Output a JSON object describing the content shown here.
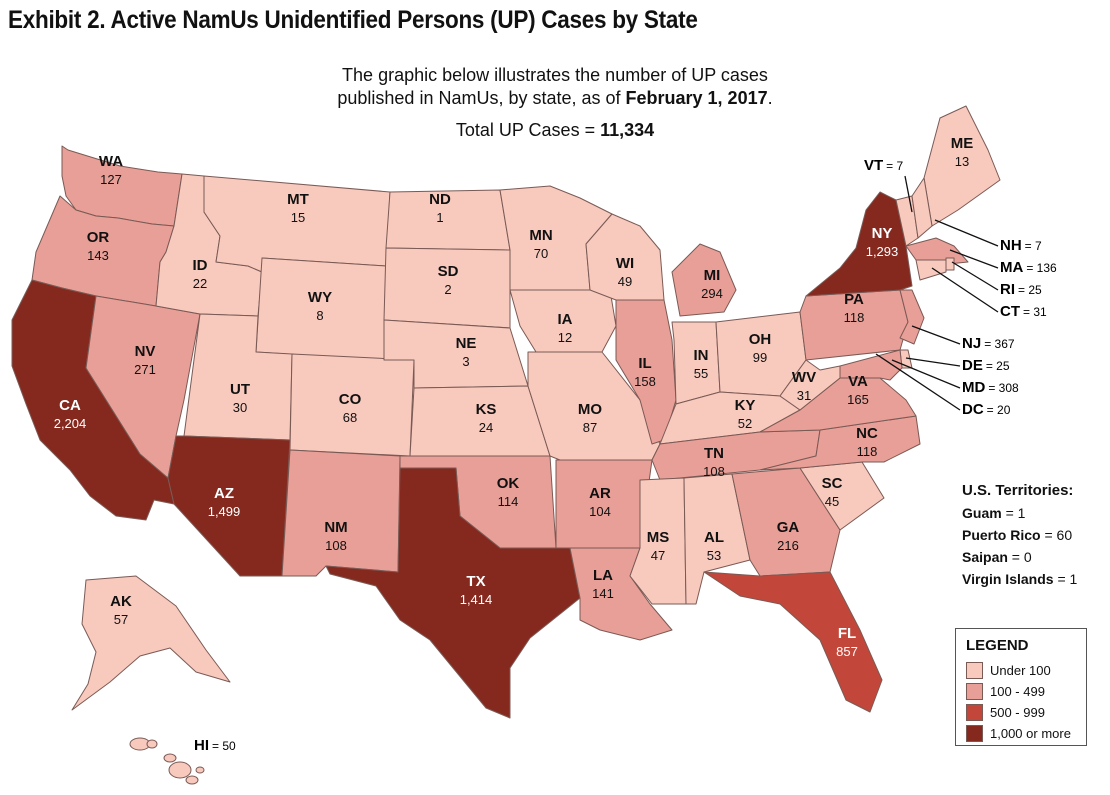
{
  "title": "Exhibit 2. Active NamUs Unidentified Persons (UP) Cases by State",
  "intro_line1": "The graphic below illustrates the number of UP cases",
  "intro_line2_pre": "published in NamUs, by state, as of ",
  "intro_line2_date": "February 1, 2017",
  "intro_line2_post": ".",
  "total_label": "Total UP Cases = ",
  "total_value": "11,334",
  "colors": {
    "under100": "#f8c9bd",
    "r100_499": "#e89f97",
    "r500_999": "#c2473a",
    "r1000": "#85291f",
    "border": "#7a5a55"
  },
  "states": [
    {
      "abbr": "WA",
      "value": "127",
      "tier": "r100_499"
    },
    {
      "abbr": "OR",
      "value": "143",
      "tier": "r100_499"
    },
    {
      "abbr": "CA",
      "value": "2,204",
      "tier": "r1000"
    },
    {
      "abbr": "NV",
      "value": "271",
      "tier": "r100_499"
    },
    {
      "abbr": "ID",
      "value": "22",
      "tier": "under100"
    },
    {
      "abbr": "MT",
      "value": "15",
      "tier": "under100"
    },
    {
      "abbr": "WY",
      "value": "8",
      "tier": "under100"
    },
    {
      "abbr": "UT",
      "value": "30",
      "tier": "under100"
    },
    {
      "abbr": "AZ",
      "value": "1,499",
      "tier": "r1000"
    },
    {
      "abbr": "CO",
      "value": "68",
      "tier": "under100"
    },
    {
      "abbr": "NM",
      "value": "108",
      "tier": "r100_499"
    },
    {
      "abbr": "ND",
      "value": "1",
      "tier": "under100"
    },
    {
      "abbr": "SD",
      "value": "2",
      "tier": "under100"
    },
    {
      "abbr": "NE",
      "value": "3",
      "tier": "under100"
    },
    {
      "abbr": "KS",
      "value": "24",
      "tier": "under100"
    },
    {
      "abbr": "OK",
      "value": "114",
      "tier": "r100_499"
    },
    {
      "abbr": "TX",
      "value": "1,414",
      "tier": "r1000"
    },
    {
      "abbr": "MN",
      "value": "70",
      "tier": "under100"
    },
    {
      "abbr": "IA",
      "value": "12",
      "tier": "under100"
    },
    {
      "abbr": "MO",
      "value": "87",
      "tier": "under100"
    },
    {
      "abbr": "AR",
      "value": "104",
      "tier": "r100_499"
    },
    {
      "abbr": "LA",
      "value": "141",
      "tier": "r100_499"
    },
    {
      "abbr": "WI",
      "value": "49",
      "tier": "under100"
    },
    {
      "abbr": "IL",
      "value": "158",
      "tier": "r100_499"
    },
    {
      "abbr": "MI",
      "value": "294",
      "tier": "r100_499"
    },
    {
      "abbr": "IN",
      "value": "55",
      "tier": "under100"
    },
    {
      "abbr": "OH",
      "value": "99",
      "tier": "under100"
    },
    {
      "abbr": "KY",
      "value": "52",
      "tier": "under100"
    },
    {
      "abbr": "TN",
      "value": "108",
      "tier": "r100_499"
    },
    {
      "abbr": "MS",
      "value": "47",
      "tier": "under100"
    },
    {
      "abbr": "AL",
      "value": "53",
      "tier": "under100"
    },
    {
      "abbr": "GA",
      "value": "216",
      "tier": "r100_499"
    },
    {
      "abbr": "FL",
      "value": "857",
      "tier": "r500_999"
    },
    {
      "abbr": "SC",
      "value": "45",
      "tier": "under100"
    },
    {
      "abbr": "NC",
      "value": "118",
      "tier": "r100_499"
    },
    {
      "abbr": "VA",
      "value": "165",
      "tier": "r100_499"
    },
    {
      "abbr": "WV",
      "value": "31",
      "tier": "under100"
    },
    {
      "abbr": "PA",
      "value": "118",
      "tier": "r100_499"
    },
    {
      "abbr": "NY",
      "value": "1,293",
      "tier": "r1000"
    },
    {
      "abbr": "ME",
      "value": "13",
      "tier": "under100"
    },
    {
      "abbr": "AK",
      "value": "57",
      "tier": "under100"
    }
  ],
  "callouts": [
    {
      "abbr": "VT",
      "value": "= 7"
    },
    {
      "abbr": "NH",
      "value": "= 7"
    },
    {
      "abbr": "MA",
      "value": "= 136"
    },
    {
      "abbr": "RI",
      "value": "= 25"
    },
    {
      "abbr": "CT",
      "value": "= 31"
    },
    {
      "abbr": "NJ",
      "value": "= 367"
    },
    {
      "abbr": "DE",
      "value": "= 25"
    },
    {
      "abbr": "MD",
      "value": "= 308"
    },
    {
      "abbr": "DC",
      "value": "= 20"
    },
    {
      "abbr": "HI",
      "value": "= 50"
    }
  ],
  "territories": {
    "heading": "U.S. Territories:",
    "items": [
      {
        "name": "Guam",
        "value": "= 1"
      },
      {
        "name": "Puerto Rico",
        "value": "= 60"
      },
      {
        "name": "Saipan",
        "value": "= 0"
      },
      {
        "name": "Virgin Islands",
        "value": "= 1"
      }
    ]
  },
  "legend": {
    "heading": "LEGEND",
    "items": [
      {
        "label": "Under 100",
        "color": "#f8c9bd"
      },
      {
        "label": "100 - 499",
        "color": "#e89f97"
      },
      {
        "label": "500 - 999",
        "color": "#c2473a"
      },
      {
        "label": "1,000 or more",
        "color": "#85291f"
      }
    ]
  }
}
